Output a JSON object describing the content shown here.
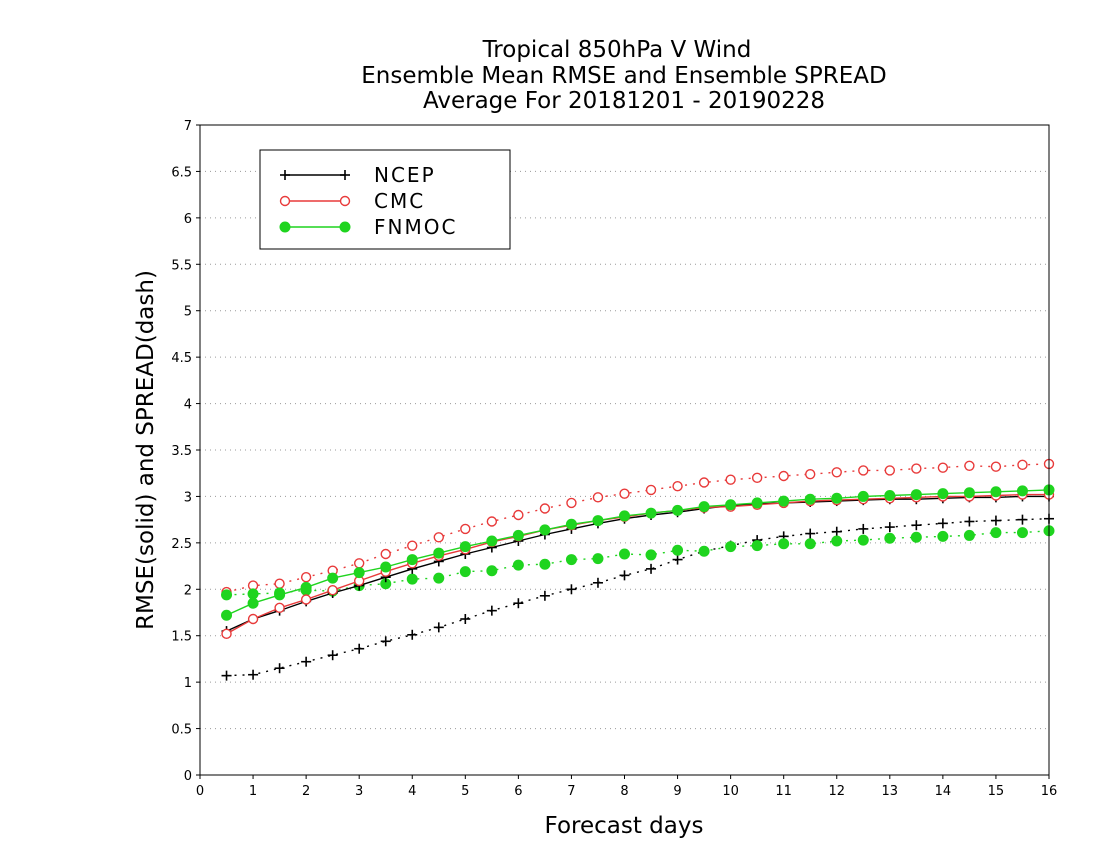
{
  "chart_data": {
    "type": "line",
    "title_lines": [
      "Tropical 850hPa V Wind",
      "Ensemble Mean RMSE and Ensemble SPREAD",
      "Average For 20181201 - 20190228"
    ],
    "xlabel": "Forecast days",
    "ylabel": "RMSE(solid) and SPREAD(dash)",
    "xlim": [
      0,
      16
    ],
    "ylim": [
      0,
      7
    ],
    "xticks": [
      "0",
      "1",
      "2",
      "3",
      "4",
      "5",
      "6",
      "7",
      "8",
      "9",
      "10",
      "11",
      "12",
      "13",
      "14",
      "15",
      "16"
    ],
    "yticks": [
      "0",
      "0.5",
      "1",
      "1.5",
      "2",
      "2.5",
      "3",
      "3.5",
      "4",
      "4.5",
      "5",
      "5.5",
      "6",
      "6.5",
      "7"
    ],
    "grid": "horizontal dotted",
    "legend_position": "top-left",
    "x": [
      0.5,
      1,
      1.5,
      2,
      2.5,
      3,
      3.5,
      4,
      4.5,
      5,
      5.5,
      6,
      6.5,
      7,
      7.5,
      8,
      8.5,
      9,
      9.5,
      10,
      10.5,
      11,
      11.5,
      12,
      12.5,
      13,
      13.5,
      14,
      14.5,
      15,
      15.5,
      16
    ],
    "series": [
      {
        "name": "NCEP",
        "color": "#000000",
        "marker": "plus",
        "rmse": [
          1.55,
          1.68,
          1.77,
          1.87,
          1.96,
          2.04,
          2.13,
          2.22,
          2.3,
          2.38,
          2.45,
          2.52,
          2.59,
          2.65,
          2.71,
          2.76,
          2.8,
          2.83,
          2.87,
          2.9,
          2.92,
          2.93,
          2.94,
          2.95,
          2.96,
          2.97,
          2.97,
          2.98,
          2.99,
          2.99,
          3.0,
          3.0
        ],
        "spread": [
          1.07,
          1.08,
          1.15,
          1.22,
          1.29,
          1.36,
          1.44,
          1.51,
          1.59,
          1.68,
          1.77,
          1.85,
          1.93,
          2.0,
          2.07,
          2.15,
          2.22,
          2.32,
          2.41,
          2.47,
          2.53,
          2.57,
          2.6,
          2.62,
          2.65,
          2.67,
          2.69,
          2.71,
          2.73,
          2.74,
          2.75,
          2.76
        ]
      },
      {
        "name": "CMC",
        "color": "#e83a3a",
        "marker": "circle-open",
        "rmse": [
          1.52,
          1.68,
          1.8,
          1.89,
          1.99,
          2.09,
          2.19,
          2.28,
          2.36,
          2.43,
          2.51,
          2.57,
          2.64,
          2.69,
          2.74,
          2.78,
          2.82,
          2.85,
          2.88,
          2.89,
          2.91,
          2.93,
          2.95,
          2.96,
          2.97,
          2.98,
          2.99,
          3.0,
          3.0,
          3.01,
          3.02,
          3.02
        ],
        "spread": [
          1.97,
          2.04,
          2.06,
          2.13,
          2.2,
          2.28,
          2.38,
          2.47,
          2.56,
          2.65,
          2.73,
          2.8,
          2.87,
          2.93,
          2.99,
          3.03,
          3.07,
          3.11,
          3.15,
          3.18,
          3.2,
          3.22,
          3.24,
          3.26,
          3.28,
          3.28,
          3.3,
          3.31,
          3.33,
          3.32,
          3.34,
          3.35
        ]
      },
      {
        "name": "FNMOC",
        "color": "#1fd41f",
        "marker": "circle-filled",
        "rmse": [
          1.72,
          1.85,
          1.94,
          2.02,
          2.12,
          2.18,
          2.24,
          2.32,
          2.39,
          2.46,
          2.52,
          2.58,
          2.64,
          2.7,
          2.74,
          2.79,
          2.82,
          2.85,
          2.89,
          2.91,
          2.93,
          2.95,
          2.97,
          2.98,
          3.0,
          3.01,
          3.02,
          3.03,
          3.04,
          3.05,
          3.06,
          3.07
        ],
        "spread": [
          1.94,
          1.95,
          1.96,
          1.99,
          1.98,
          2.04,
          2.06,
          2.11,
          2.12,
          2.19,
          2.2,
          2.26,
          2.27,
          2.32,
          2.33,
          2.38,
          2.37,
          2.42,
          2.41,
          2.46,
          2.47,
          2.49,
          2.49,
          2.52,
          2.53,
          2.55,
          2.56,
          2.57,
          2.58,
          2.61,
          2.61,
          2.63
        ]
      }
    ]
  }
}
